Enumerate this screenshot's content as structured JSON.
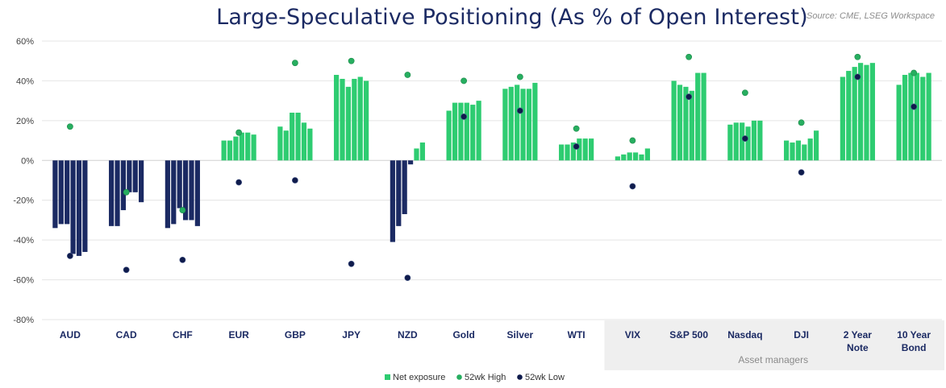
{
  "chart_data": {
    "type": "bar",
    "title": "Large-Speculative Positioning (As % of Open Interest)",
    "source": "Source: CME, LSEG Workspace",
    "ylim": [
      -80,
      60
    ],
    "yticks": [
      "60%",
      "40%",
      "20%",
      "0%",
      "-20%",
      "-40%",
      "-60%",
      "-80%"
    ],
    "ytick_values": [
      60,
      40,
      20,
      0,
      -20,
      -40,
      -60,
      -80
    ],
    "grid": true,
    "legend_position": "bottom",
    "group_label": "Asset managers",
    "colors": {
      "positive": "#2ecc71",
      "negative": "#1b2a63",
      "high": "#27ae60",
      "low": "#0f1b4c"
    },
    "categories": [
      {
        "label": [
          "AUD"
        ],
        "net": [
          -34,
          -32,
          -32,
          -47,
          -48,
          -46
        ],
        "high": 17,
        "low": -48
      },
      {
        "label": [
          "CAD"
        ],
        "net": [
          -33,
          -33,
          -25,
          -16,
          -16,
          -21
        ],
        "high": -16,
        "low": -55
      },
      {
        "label": [
          "CHF"
        ],
        "net": [
          -34,
          -32,
          -24,
          -30,
          -30,
          -33
        ],
        "high": -25,
        "low": -50
      },
      {
        "label": [
          "EUR"
        ],
        "net": [
          10,
          10,
          12,
          14,
          14,
          13
        ],
        "high": 14,
        "low": -11
      },
      {
        "label": [
          "GBP"
        ],
        "net": [
          17,
          15,
          24,
          24,
          19,
          16
        ],
        "high": 49,
        "low": -10
      },
      {
        "label": [
          "JPY"
        ],
        "net": [
          43,
          41,
          37,
          41,
          42,
          40
        ],
        "high": 50,
        "low": -52
      },
      {
        "label": [
          "NZD"
        ],
        "net": [
          -41,
          -33,
          -27,
          -2,
          6,
          9
        ],
        "high": 43,
        "low": -59
      },
      {
        "label": [
          "Gold"
        ],
        "net": [
          25,
          29,
          29,
          29,
          28,
          30
        ],
        "high": 40,
        "low": 22
      },
      {
        "label": [
          "Silver"
        ],
        "net": [
          36,
          37,
          38,
          36,
          36,
          39
        ],
        "high": 42,
        "low": 25
      },
      {
        "label": [
          "WTI"
        ],
        "net": [
          8,
          8,
          9,
          11,
          11,
          11
        ],
        "high": 16,
        "low": 7
      },
      {
        "label": [
          "VIX"
        ],
        "net": [
          2,
          3,
          4,
          4,
          3,
          6
        ],
        "high": 10,
        "low": -13
      },
      {
        "label": [
          "S&P 500"
        ],
        "net": [
          40,
          38,
          37,
          35,
          44,
          44
        ],
        "high": 52,
        "low": 32
      },
      {
        "label": [
          "Nasdaq"
        ],
        "net": [
          18,
          19,
          19,
          17,
          20,
          20
        ],
        "high": 34,
        "low": 11
      },
      {
        "label": [
          "DJI"
        ],
        "net": [
          10,
          9,
          10,
          8,
          11,
          15
        ],
        "high": 19,
        "low": -6
      },
      {
        "label": [
          "2 Year",
          "Note"
        ],
        "net": [
          42,
          45,
          47,
          49,
          48,
          49
        ],
        "high": 52,
        "low": 42
      },
      {
        "label": [
          "10 Year",
          "Bond"
        ],
        "net": [
          38,
          43,
          44,
          44,
          42,
          44
        ],
        "high": 44,
        "low": 27
      }
    ],
    "legend": [
      {
        "key": "net",
        "label": "Net exposure"
      },
      {
        "key": "high",
        "label": "52wk High"
      },
      {
        "key": "low",
        "label": "52wk Low"
      }
    ]
  }
}
